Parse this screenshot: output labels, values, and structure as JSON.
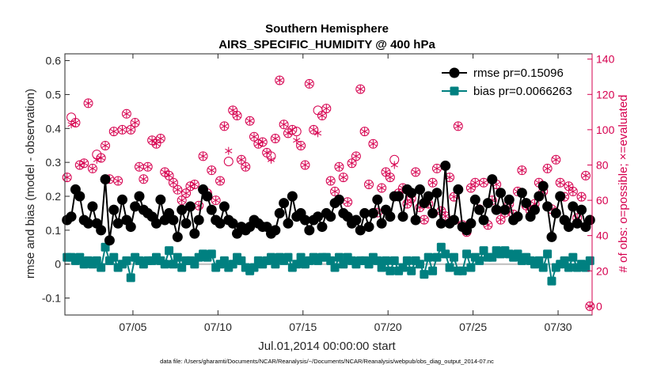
{
  "chart_data": {
    "type": "line",
    "title": [
      "Southern Hemisphere",
      "AIRS_SPECIFIC_HUMIDITY @ 400 hPa"
    ],
    "xlabel": "Jul.01,2014 00:00:00 start",
    "ylabel": "rmse and bias (model - observation)",
    "ylabel_right": "# of obs: o=possible; ×=evaluated",
    "footnote": "data file: /Users/gharamti/Documents/NCAR/Reanalysis/~/Documents/NCAR/Reanalysis/webpub/obs_diag_output_2014-07.nc",
    "xlim": [
      1.0,
      32.0
    ],
    "ylim": [
      -0.15,
      0.62
    ],
    "ylim_right": [
      -5.0,
      143.0
    ],
    "x_ticks": [
      5,
      10,
      15,
      20,
      25,
      30
    ],
    "x_tick_labels": [
      "07/05",
      "07/10",
      "07/15",
      "07/20",
      "07/25",
      "07/30"
    ],
    "y_ticks": [
      "-0.1",
      "0",
      "0.1",
      "0.2",
      "0.3",
      "0.4",
      "0.5",
      "0.6"
    ],
    "y_ticks_right": [
      "0",
      "20",
      "40",
      "60",
      "80",
      "100",
      "120",
      "140"
    ],
    "legend_position": "top-right",
    "series": [
      {
        "name": "rmse pr=0.15096",
        "color": "#000000",
        "marker": "circle",
        "x": [
          1.125,
          1.375,
          1.625,
          1.875,
          2.125,
          2.375,
          2.625,
          2.875,
          3.125,
          3.375,
          3.625,
          3.875,
          4.125,
          4.375,
          4.625,
          4.875,
          5.125,
          5.375,
          5.625,
          5.875,
          6.125,
          6.375,
          6.625,
          6.875,
          7.125,
          7.375,
          7.625,
          7.875,
          8.125,
          8.375,
          8.625,
          8.875,
          9.125,
          9.375,
          9.625,
          9.875,
          10.125,
          10.375,
          10.625,
          10.875,
          11.125,
          11.375,
          11.625,
          11.875,
          12.125,
          12.375,
          12.625,
          12.875,
          13.125,
          13.375,
          13.625,
          13.875,
          14.125,
          14.375,
          14.625,
          14.875,
          15.125,
          15.375,
          15.625,
          15.875,
          16.125,
          16.375,
          16.625,
          16.875,
          17.125,
          17.375,
          17.625,
          17.875,
          18.125,
          18.375,
          18.625,
          18.875,
          19.125,
          19.375,
          19.625,
          19.875,
          20.125,
          20.375,
          20.625,
          20.875,
          21.125,
          21.375,
          21.625,
          21.875,
          22.125,
          22.375,
          22.625,
          22.875,
          23.125,
          23.375,
          23.625,
          23.875,
          24.125,
          24.375,
          24.625,
          24.875,
          25.125,
          25.375,
          25.625,
          25.875,
          26.125,
          26.375,
          26.625,
          26.875,
          27.125,
          27.375,
          27.625,
          27.875,
          28.125,
          28.375,
          28.625,
          28.875,
          29.125,
          29.375,
          29.625,
          29.875,
          30.125,
          30.375,
          30.625,
          30.875,
          31.125,
          31.375,
          31.625,
          31.875
        ],
        "values": [
          0.13,
          0.14,
          0.22,
          0.2,
          0.13,
          0.12,
          0.17,
          0.12,
          0.1,
          0.25,
          0.07,
          0.16,
          0.12,
          0.19,
          0.13,
          0.11,
          0.17,
          0.2,
          0.16,
          0.15,
          0.14,
          0.12,
          0.19,
          0.13,
          0.15,
          0.13,
          0.08,
          0.16,
          0.12,
          0.17,
          0.09,
          0.13,
          0.22,
          0.2,
          0.16,
          0.13,
          0.12,
          0.17,
          0.13,
          0.12,
          0.09,
          0.11,
          0.1,
          0.11,
          0.13,
          0.12,
          0.11,
          0.11,
          0.09,
          0.1,
          0.15,
          0.18,
          0.12,
          0.2,
          0.14,
          0.15,
          0.13,
          0.1,
          0.13,
          0.14,
          0.11,
          0.15,
          0.14,
          0.18,
          0.19,
          0.15,
          0.14,
          0.12,
          0.13,
          0.1,
          0.15,
          0.11,
          0.15,
          0.19,
          0.12,
          0.16,
          0.14,
          0.2,
          0.2,
          0.14,
          0.22,
          0.21,
          0.13,
          0.22,
          0.18,
          0.2,
          0.15,
          0.21,
          0.12,
          0.29,
          0.12,
          0.13,
          0.22,
          0.11,
          0.1,
          0.12,
          0.19,
          0.16,
          0.13,
          0.18,
          0.25,
          0.16,
          0.21,
          0.16,
          0.19,
          0.13,
          0.14,
          0.21,
          0.18,
          0.14,
          0.16,
          0.2,
          0.23,
          0.17,
          0.08,
          0.15,
          0.2,
          0.13,
          0.11,
          0.17,
          0.12,
          0.16,
          0.11,
          0.13
        ]
      },
      {
        "name": "bias pr=0.0066263",
        "color": "#008080",
        "marker": "square",
        "x": [
          1.125,
          1.375,
          1.625,
          1.875,
          2.125,
          2.375,
          2.625,
          2.875,
          3.125,
          3.375,
          3.625,
          3.875,
          4.125,
          4.375,
          4.625,
          4.875,
          5.125,
          5.375,
          5.625,
          5.875,
          6.125,
          6.375,
          6.625,
          6.875,
          7.125,
          7.375,
          7.625,
          7.875,
          8.125,
          8.375,
          8.625,
          8.875,
          9.125,
          9.375,
          9.625,
          9.875,
          10.125,
          10.375,
          10.625,
          10.875,
          11.125,
          11.375,
          11.625,
          11.875,
          12.125,
          12.375,
          12.625,
          12.875,
          13.125,
          13.375,
          13.625,
          13.875,
          14.125,
          14.375,
          14.625,
          14.875,
          15.125,
          15.375,
          15.625,
          15.875,
          16.125,
          16.375,
          16.625,
          16.875,
          17.125,
          17.375,
          17.625,
          17.875,
          18.125,
          18.375,
          18.625,
          18.875,
          19.125,
          19.375,
          19.625,
          19.875,
          20.125,
          20.375,
          20.625,
          20.875,
          21.125,
          21.375,
          21.625,
          21.875,
          22.125,
          22.375,
          22.625,
          22.875,
          23.125,
          23.375,
          23.625,
          23.875,
          24.125,
          24.375,
          24.625,
          24.875,
          25.125,
          25.375,
          25.625,
          25.875,
          26.125,
          26.375,
          26.625,
          26.875,
          27.125,
          27.375,
          27.625,
          27.875,
          28.125,
          28.375,
          28.625,
          28.875,
          29.125,
          29.375,
          29.625,
          29.875,
          30.125,
          30.375,
          30.625,
          30.875,
          31.125,
          31.375,
          31.625,
          31.875
        ],
        "values": [
          0.02,
          0.02,
          0.01,
          0.02,
          0.0,
          0.01,
          0.0,
          0.01,
          -0.01,
          0.05,
          0.01,
          0.02,
          -0.01,
          0.0,
          0.01,
          -0.04,
          0.02,
          0.01,
          0.0,
          0.01,
          0.01,
          0.02,
          0.01,
          0.0,
          0.04,
          0.0,
          0.02,
          -0.01,
          0.01,
          0.01,
          0.0,
          0.02,
          0.03,
          0.02,
          0.03,
          -0.01,
          0.0,
          0.01,
          -0.01,
          0.0,
          0.02,
          0.01,
          -0.01,
          -0.02,
          -0.01,
          0.01,
          0.0,
          0.01,
          0.02,
          0.0,
          0.02,
          0.01,
          0.02,
          -0.01,
          0.0,
          0.02,
          0.0,
          0.01,
          0.02,
          0.01,
          0.02,
          0.02,
          0.01,
          -0.01,
          0.02,
          0.0,
          0.02,
          0.01,
          0.0,
          0.01,
          0.01,
          0.0,
          0.02,
          0.01,
          -0.01,
          0.01,
          -0.02,
          0.01,
          -0.02,
          -0.01,
          0.01,
          -0.02,
          0.01,
          0.0,
          -0.03,
          0.02,
          -0.02,
          0.02,
          0.05,
          0.03,
          -0.01,
          0.02,
          -0.02,
          -0.02,
          0.03,
          -0.01,
          0.02,
          0.01,
          0.04,
          0.02,
          0.02,
          0.04,
          0.03,
          0.04,
          0.03,
          0.02,
          0.03,
          0.01,
          0.02,
          0.01,
          0.0,
          0.01,
          -0.01,
          0.03,
          -0.05,
          -0.01,
          0.0,
          0.01,
          -0.01,
          0.02,
          -0.01,
          0.0,
          -0.01,
          0.01
        ]
      },
      {
        "name": "possible",
        "axis": "right",
        "color": "#d6004f",
        "marker": "open-circle",
        "x": [
          1.125,
          1.375,
          1.625,
          1.875,
          2.125,
          2.375,
          2.625,
          2.875,
          3.125,
          3.375,
          3.625,
          3.875,
          4.125,
          4.375,
          4.625,
          4.875,
          5.125,
          5.375,
          5.625,
          5.875,
          6.125,
          6.375,
          6.625,
          6.875,
          7.125,
          7.375,
          7.625,
          7.875,
          8.125,
          8.375,
          8.625,
          8.875,
          9.125,
          9.375,
          9.625,
          9.875,
          10.125,
          10.375,
          10.625,
          10.875,
          11.125,
          11.375,
          11.625,
          11.875,
          12.125,
          12.375,
          12.625,
          12.875,
          13.125,
          13.375,
          13.625,
          13.875,
          14.125,
          14.375,
          14.625,
          14.875,
          15.125,
          15.375,
          15.625,
          15.875,
          16.125,
          16.375,
          16.625,
          16.875,
          17.125,
          17.375,
          17.625,
          17.875,
          18.125,
          18.375,
          18.625,
          18.875,
          19.125,
          19.375,
          19.625,
          19.875,
          20.125,
          20.375,
          20.625,
          20.875,
          21.125,
          21.375,
          21.625,
          21.875,
          22.125,
          22.375,
          22.625,
          22.875,
          23.125,
          23.375,
          23.625,
          23.875,
          24.125,
          24.375,
          24.625,
          24.875,
          25.125,
          25.375,
          25.625,
          25.875,
          26.125,
          26.375,
          26.625,
          26.875,
          27.125,
          27.375,
          27.625,
          27.875,
          28.125,
          28.375,
          28.625,
          28.875,
          29.125,
          29.375,
          29.625,
          29.875,
          30.125,
          30.375,
          30.625,
          30.875,
          31.125,
          31.375,
          31.625,
          31.875
        ],
        "values": [
          73,
          107,
          104,
          80,
          81,
          115,
          78,
          86,
          84,
          91,
          72,
          99,
          71,
          100,
          109,
          100,
          104,
          79,
          72,
          79,
          94,
          92,
          95,
          76,
          74,
          70,
          66,
          60,
          64,
          68,
          69,
          57,
          85,
          64,
          77,
          60,
          71,
          102,
          82,
          111,
          108,
          83,
          79,
          105,
          96,
          92,
          93,
          87,
          85,
          95,
          128,
          103,
          98,
          100,
          99,
          91,
          80,
          126,
          100,
          111,
          108,
          112,
          71,
          65,
          79,
          73,
          59,
          81,
          85,
          123,
          99,
          69,
          92,
          53,
          67,
          76,
          73,
          83,
          64,
          67,
          58,
          61,
          76,
          56,
          49,
          58,
          70,
          78,
          54,
          51,
          73,
          62,
          102,
          46,
          42,
          67,
          70,
          55,
          70,
          46,
          60,
          69,
          49,
          53,
          58,
          52,
          65,
          77,
          57,
          54,
          58,
          70,
          65,
          78,
          55,
          83,
          70,
          62,
          68,
          65,
          50,
          62,
          74,
          0
        ]
      },
      {
        "name": "evaluated",
        "axis": "right",
        "color": "#d6004f",
        "marker": "asterisk",
        "x": [
          1.125,
          1.375,
          1.625,
          1.875,
          2.125,
          2.375,
          2.625,
          2.875,
          3.125,
          3.375,
          3.625,
          3.875,
          4.125,
          4.375,
          4.625,
          4.875,
          5.125,
          5.375,
          5.625,
          5.875,
          6.125,
          6.375,
          6.625,
          6.875,
          7.125,
          7.375,
          7.625,
          7.875,
          8.125,
          8.375,
          8.625,
          8.875,
          9.125,
          9.375,
          9.625,
          9.875,
          10.125,
          10.375,
          10.625,
          10.875,
          11.125,
          11.375,
          11.625,
          11.875,
          12.125,
          12.375,
          12.625,
          12.875,
          13.125,
          13.375,
          13.625,
          13.875,
          14.125,
          14.375,
          14.625,
          14.875,
          15.125,
          15.375,
          15.625,
          15.875,
          16.125,
          16.375,
          16.625,
          16.875,
          17.125,
          17.375,
          17.625,
          17.875,
          18.125,
          18.375,
          18.625,
          18.875,
          19.125,
          19.375,
          19.625,
          19.875,
          20.125,
          20.375,
          20.625,
          20.875,
          21.125,
          21.375,
          21.625,
          21.875,
          22.125,
          22.375,
          22.625,
          22.875,
          23.125,
          23.375,
          23.625,
          23.875,
          24.125,
          24.375,
          24.625,
          24.875,
          25.125,
          25.375,
          25.625,
          25.875,
          26.125,
          26.375,
          26.625,
          26.875,
          27.125,
          27.375,
          27.625,
          27.875,
          28.125,
          28.375,
          28.625,
          28.875,
          29.125,
          29.375,
          29.625,
          29.875,
          30.125,
          30.375,
          30.625,
          30.875,
          31.125,
          31.375,
          31.625,
          31.875
        ],
        "values": [
          73,
          103,
          104,
          80,
          81,
          115,
          78,
          83,
          84,
          91,
          72,
          99,
          71,
          100,
          109,
          100,
          104,
          79,
          72,
          79,
          94,
          92,
          95,
          76,
          74,
          70,
          66,
          60,
          64,
          68,
          69,
          57,
          85,
          64,
          77,
          60,
          71,
          102,
          88,
          111,
          108,
          83,
          79,
          105,
          96,
          92,
          93,
          87,
          83,
          95,
          128,
          103,
          98,
          100,
          94,
          91,
          80,
          126,
          100,
          98,
          108,
          112,
          71,
          65,
          79,
          73,
          59,
          81,
          85,
          123,
          99,
          69,
          92,
          53,
          67,
          76,
          73,
          80,
          64,
          67,
          58,
          61,
          76,
          56,
          49,
          58,
          70,
          78,
          54,
          51,
          73,
          62,
          102,
          44,
          42,
          67,
          70,
          55,
          70,
          46,
          60,
          69,
          49,
          53,
          58,
          52,
          65,
          77,
          57,
          54,
          58,
          70,
          65,
          78,
          55,
          83,
          70,
          62,
          68,
          65,
          50,
          62,
          74,
          0
        ]
      }
    ]
  }
}
